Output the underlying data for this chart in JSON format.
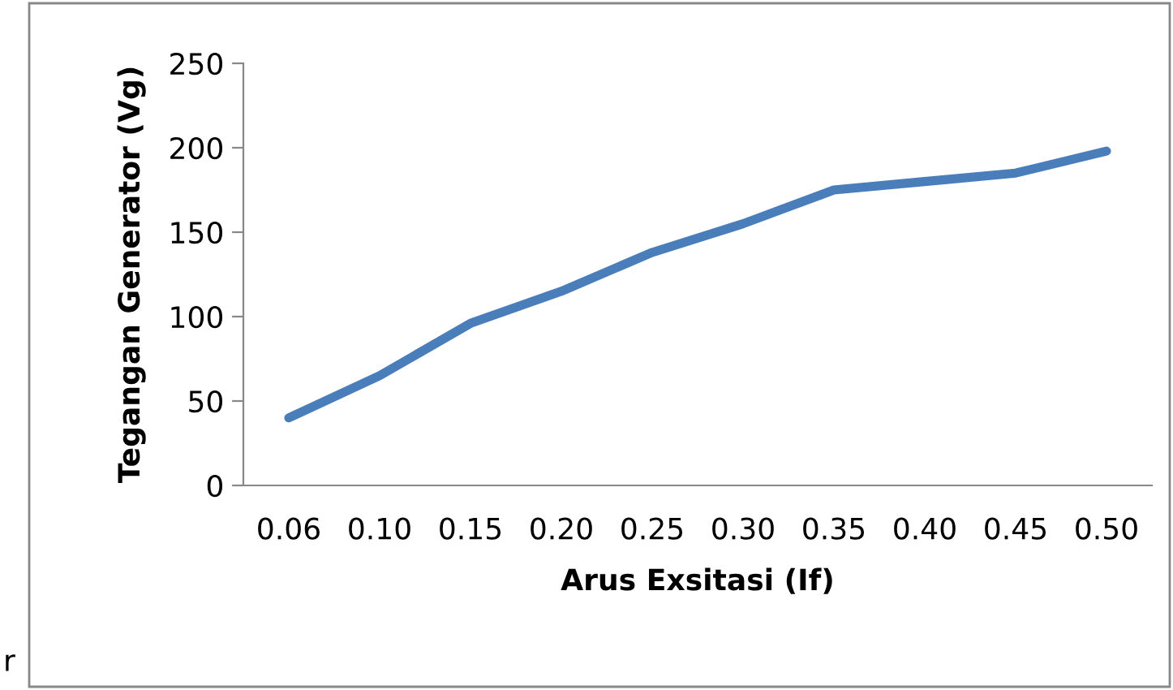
{
  "chart_data": {
    "type": "line",
    "xlabel": "Arus Exsitasi (If)",
    "ylabel": "Tegangan Generator (Vg)",
    "categories": [
      "0.06",
      "0.10",
      "0.15",
      "0.20",
      "0.25",
      "0.30",
      "0.35",
      "0.40",
      "0.45",
      "0.50"
    ],
    "series": [
      {
        "color": "#4a7ebb",
        "values": [
          40,
          65,
          96,
          115,
          138,
          155,
          175,
          180,
          185,
          198
        ]
      }
    ],
    "ylim": [
      0,
      250
    ],
    "yticks": [
      0,
      50,
      100,
      150,
      200,
      250
    ],
    "grid": false,
    "legend": false,
    "marker": "none",
    "line_style": "solid",
    "annotations": [
      "r"
    ]
  }
}
